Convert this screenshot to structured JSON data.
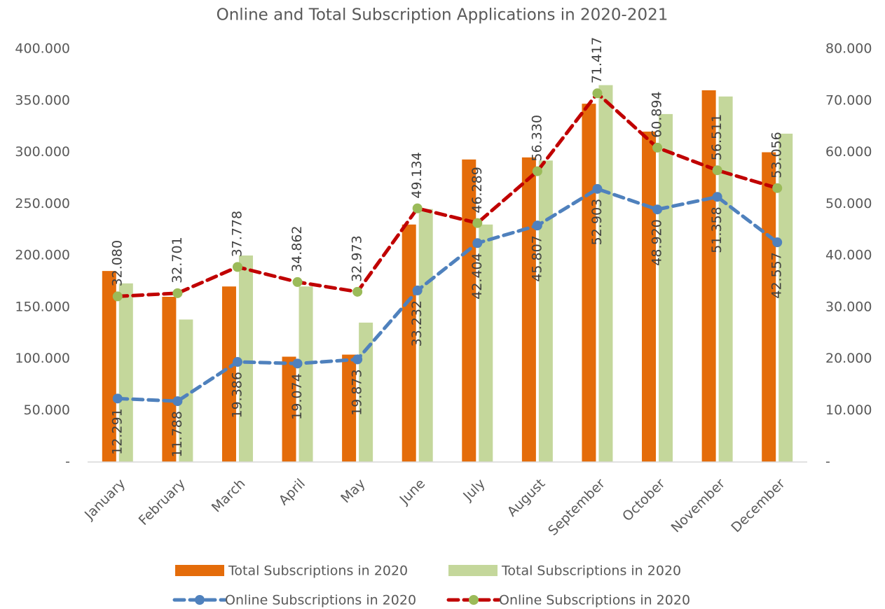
{
  "chart_data": {
    "type": "bar+line",
    "title": "Online and Total Subscription Applications in 2020-2021",
    "categories": [
      "January",
      "February",
      "March",
      "April",
      "May",
      "June",
      "July",
      "August",
      "September",
      "October",
      "November",
      "December"
    ],
    "ylim": [
      0,
      400000
    ],
    "yticks": [
      {
        "value": 0,
        "label": "-"
      },
      {
        "value": 50000,
        "label": "50.000"
      },
      {
        "value": 100000,
        "label": "100.000"
      },
      {
        "value": 150000,
        "label": "150.000"
      },
      {
        "value": 200000,
        "label": "200.000"
      },
      {
        "value": 250000,
        "label": "250.000"
      },
      {
        "value": 300000,
        "label": "300.000"
      },
      {
        "value": 350000,
        "label": "350.000"
      },
      {
        "value": 400000,
        "label": "400.000"
      }
    ],
    "y2lim": [
      0,
      80000
    ],
    "y2ticks": [
      {
        "value": 0,
        "label": "-"
      },
      {
        "value": 10000,
        "label": "10.000"
      },
      {
        "value": 20000,
        "label": "20.000"
      },
      {
        "value": 30000,
        "label": "30.000"
      },
      {
        "value": 40000,
        "label": "40.000"
      },
      {
        "value": 50000,
        "label": "50.000"
      },
      {
        "value": 60000,
        "label": "60.000"
      },
      {
        "value": 70000,
        "label": "70.000"
      },
      {
        "value": 80000,
        "label": "80.000"
      }
    ],
    "legend": "bottom",
    "series": [
      {
        "name": "Total Subscriptions in 2020",
        "type": "bar",
        "color": "#e46c0a",
        "values": [
          185000,
          160000,
          170000,
          102000,
          104000,
          230000,
          293000,
          295000,
          347000,
          320000,
          360000,
          300000
        ]
      },
      {
        "name": "Total Subscriptions in 2020",
        "type": "bar",
        "color": "#c4d79b",
        "values": [
          173000,
          138000,
          200000,
          170000,
          135000,
          245000,
          230000,
          292000,
          365000,
          337000,
          354000,
          318000
        ]
      },
      {
        "name": "Online Subscriptions in 2020",
        "type": "line",
        "axis": "y2",
        "color": "#4f81bd",
        "marker_color": "#4f81bd",
        "values": [
          12291,
          11788,
          19386,
          19074,
          19873,
          33232,
          42404,
          45807,
          52903,
          48920,
          51358,
          42557
        ],
        "value_labels": [
          "12.291",
          "11.788",
          "19.386",
          "19.074",
          "19.873",
          "33.232",
          "42.404",
          "45.807",
          "52.903",
          "48.920",
          "51.358",
          "42.557"
        ]
      },
      {
        "name": "Online Subscriptions in 2020",
        "type": "line",
        "axis": "y2",
        "color": "#c00000",
        "marker_color": "#9bbb59",
        "values": [
          32080,
          32701,
          37778,
          34862,
          32973,
          49134,
          46289,
          56330,
          71417,
          60894,
          56511,
          53056
        ],
        "value_labels": [
          "32.080",
          "32.701",
          "37.778",
          "34.862",
          "32.973",
          "49.134",
          "46.289",
          "56.330",
          "71.417",
          "60.894",
          "56.511",
          "53.056"
        ]
      }
    ]
  }
}
